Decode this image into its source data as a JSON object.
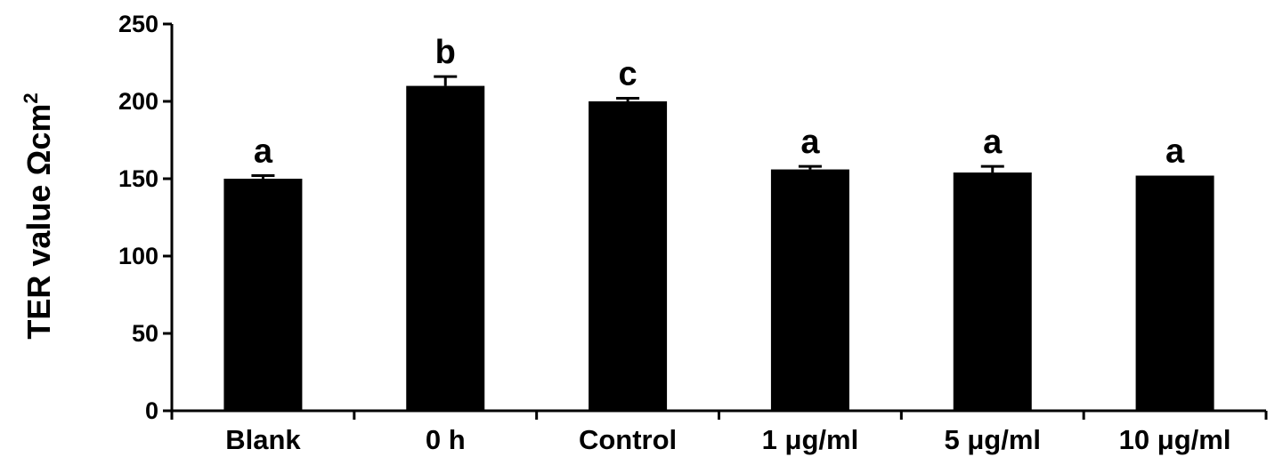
{
  "chart_data": {
    "type": "bar",
    "title": "",
    "xlabel": "",
    "ylabel": "TER value Ωcm",
    "ylabel_superscript": "2",
    "ylim": [
      0,
      250
    ],
    "yticks": [
      0,
      50,
      100,
      150,
      200,
      250
    ],
    "categories": [
      "Blank",
      "0 h",
      "Control",
      "1 μg/ml",
      "5 μg/ml",
      "10 μg/ml"
    ],
    "values": [
      150,
      210,
      200,
      156,
      154,
      152
    ],
    "errors": [
      2,
      6,
      2,
      2,
      4,
      0
    ],
    "significance_labels": [
      "a",
      "b",
      "c",
      "a",
      "a",
      "a"
    ],
    "bar_color": "#000000",
    "grid": false,
    "legend": "none"
  }
}
